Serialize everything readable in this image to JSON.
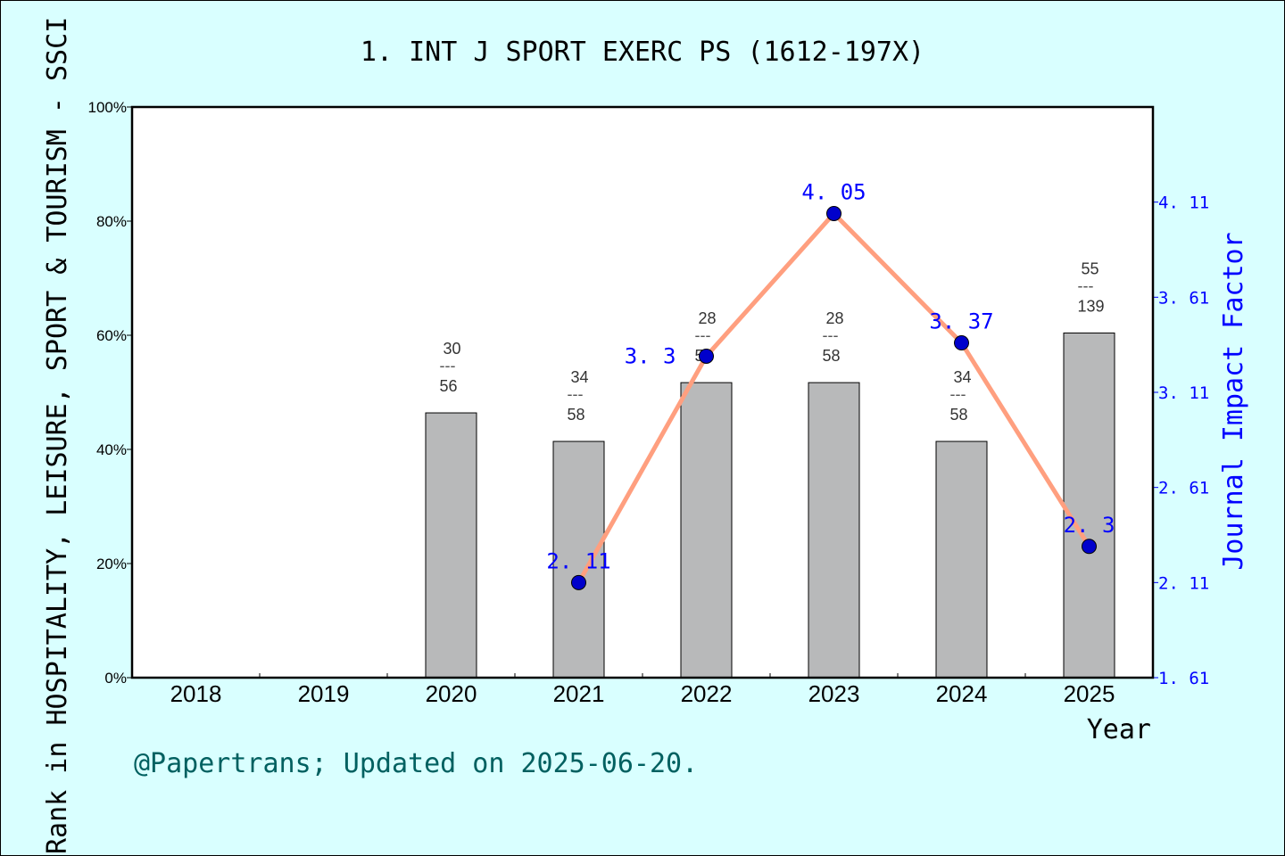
{
  "chart_data": {
    "type": "bar+line",
    "title": "1. INT J SPORT EXERC PS (1612-197X)",
    "xlabel": "Year",
    "ylabel_left": "Rank in HOSPITALITY, LEISURE, SPORT & TOURISM - SSCI",
    "ylabel_right": "Journal Impact Factor",
    "categories": [
      "2018",
      "2019",
      "2020",
      "2021",
      "2022",
      "2023",
      "2024",
      "2025"
    ],
    "left_axis": {
      "ylim": [
        0,
        100
      ],
      "ticks": [
        "0%",
        "20%",
        "40%",
        "60%",
        "80%",
        "100%"
      ]
    },
    "right_axis": {
      "ylim": [
        1.61,
        4.61
      ],
      "ticks": [
        "1.61",
        "2.11",
        "2.61",
        "3.11",
        "3.61",
        "4.11"
      ]
    },
    "bars": [
      {
        "year": "2020",
        "rank": 30,
        "total": 56,
        "percent": 46.4
      },
      {
        "year": "2021",
        "rank": 34,
        "total": 58,
        "percent": 41.4
      },
      {
        "year": "2022",
        "rank": 28,
        "total": 58,
        "percent": 51.7
      },
      {
        "year": "2023",
        "rank": 28,
        "total": 58,
        "percent": 51.7
      },
      {
        "year": "2024",
        "rank": 34,
        "total": 58,
        "percent": 41.4
      },
      {
        "year": "2025",
        "rank": 55,
        "total": 139,
        "percent": 60.4
      }
    ],
    "impact_factor": [
      {
        "year": "2021",
        "value": 2.11,
        "label": "2.11"
      },
      {
        "year": "2022",
        "value": 3.3,
        "label": "3.3"
      },
      {
        "year": "2023",
        "value": 4.05,
        "label": "4.05"
      },
      {
        "year": "2024",
        "value": 3.37,
        "label": "3.37"
      },
      {
        "year": "2025",
        "value": 2.3,
        "label": "2.3"
      }
    ],
    "colors": {
      "bar": "#b8b9ba",
      "line": "#ff9f7f",
      "point": "#0000cc",
      "if_text": "#0000ff",
      "background": "#d9ffff",
      "footer": "#006060"
    }
  },
  "footer": "@Papertrans; Updated on 2025-06-20."
}
